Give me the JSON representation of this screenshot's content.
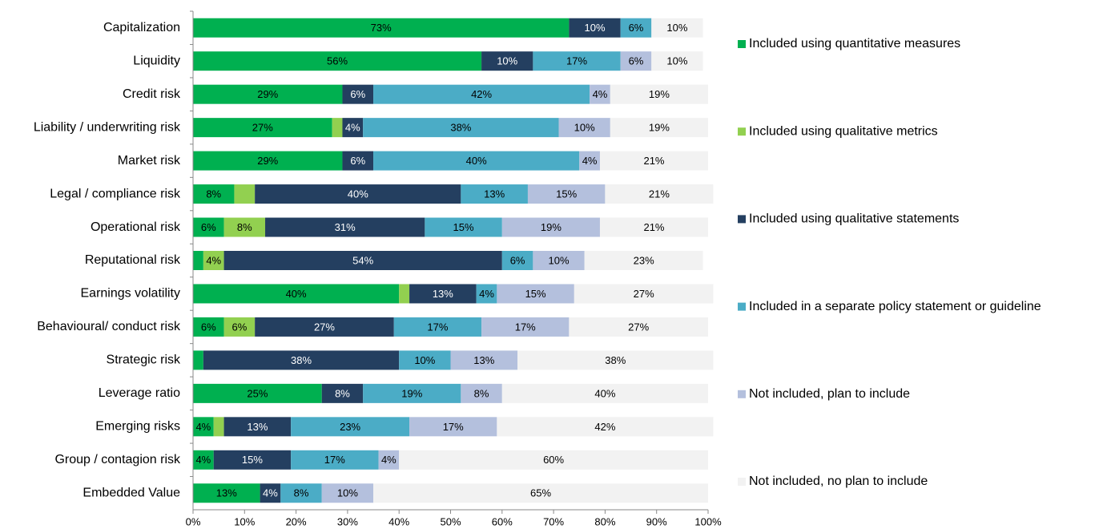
{
  "chart_data": {
    "type": "stacked_barh",
    "categories": [
      "Capitalization",
      "Liquidity",
      "Credit risk",
      "Liability / underwriting risk",
      "Market risk",
      "Legal / compliance risk",
      "Operational risk",
      "Reputational risk",
      "Earnings volatility",
      "Behavioural/ conduct risk",
      "Strategic risk",
      "Leverage ratio",
      "Emerging risks",
      "Group / contagion risk",
      "Embedded Value"
    ],
    "series": [
      {
        "name": "Included using quantitative measures",
        "color": "#00b050",
        "label_color": "#000000",
        "values": [
          73,
          56,
          29,
          27,
          29,
          8,
          6,
          2,
          40,
          6,
          2,
          25,
          4,
          4,
          13
        ],
        "value_labels": [
          "73%",
          "56%",
          "29%",
          "27%",
          "29%",
          "8%",
          "6%",
          null,
          "40%",
          "6%",
          null,
          "25%",
          "4%",
          "4%",
          "13%"
        ]
      },
      {
        "name": "Included using qualitative metrics",
        "color": "#92d050",
        "label_color": "#000000",
        "values": [
          0,
          0,
          0,
          2,
          0,
          4,
          8,
          4,
          2,
          6,
          0,
          0,
          2,
          0,
          0
        ],
        "value_labels": [
          null,
          null,
          null,
          null,
          null,
          null,
          "8%",
          "4%",
          null,
          "6%",
          null,
          null,
          null,
          null,
          null
        ]
      },
      {
        "name": "Included using qualitative statements",
        "color": "#243f60",
        "label_color": "#ffffff",
        "values": [
          10,
          10,
          6,
          4,
          6,
          40,
          31,
          54,
          13,
          27,
          38,
          8,
          13,
          15,
          4
        ],
        "value_labels": [
          "10%",
          "10%",
          "6%",
          "4%",
          "6%",
          "40%",
          "31%",
          "54%",
          "13%",
          "27%",
          "38%",
          "8%",
          "13%",
          "15%",
          "4%"
        ]
      },
      {
        "name": "Included in a separate policy statement or guideline",
        "color": "#4bacc6",
        "label_color": "#000000",
        "values": [
          6,
          17,
          42,
          38,
          40,
          13,
          15,
          6,
          4,
          17,
          10,
          19,
          23,
          17,
          8
        ],
        "value_labels": [
          "6%",
          "17%",
          "42%",
          "38%",
          "40%",
          "13%",
          "15%",
          "6%",
          "4%",
          "17%",
          "10%",
          "19%",
          "23%",
          "17%",
          "8%"
        ]
      },
      {
        "name": "Not included, plan to include",
        "color": "#b4c0dd",
        "label_color": "#000000",
        "values": [
          0,
          6,
          4,
          10,
          4,
          15,
          19,
          10,
          15,
          17,
          13,
          8,
          17,
          4,
          10
        ],
        "value_labels": [
          null,
          "6%",
          "4%",
          "10%",
          "4%",
          "15%",
          "19%",
          "10%",
          "15%",
          "17%",
          "13%",
          "8%",
          "17%",
          "4%",
          "10%"
        ]
      },
      {
        "name": "Not included, no plan to include",
        "color": "#f2f2f2",
        "label_color": "#000000",
        "values": [
          10,
          10,
          19,
          19,
          21,
          21,
          21,
          23,
          27,
          27,
          38,
          40,
          42,
          60,
          65
        ],
        "value_labels": [
          "10%",
          "10%",
          "19%",
          "19%",
          "21%",
          "21%",
          "21%",
          "23%",
          "27%",
          "27%",
          "38%",
          "40%",
          "42%",
          "60%",
          "65%"
        ]
      }
    ],
    "xlim": [
      0,
      100
    ],
    "xticks": [
      {
        "value": 0,
        "label": "0%"
      },
      {
        "value": 10,
        "label": "10%"
      },
      {
        "value": 20,
        "label": "20%"
      },
      {
        "value": 30,
        "label": "30%"
      },
      {
        "value": 40,
        "label": "40%"
      },
      {
        "value": 50,
        "label": "50%"
      },
      {
        "value": 60,
        "label": "60%"
      },
      {
        "value": 70,
        "label": "70%"
      },
      {
        "value": 80,
        "label": "80%"
      },
      {
        "value": 90,
        "label": "90%"
      },
      {
        "value": 100,
        "label": "100%"
      }
    ],
    "legend": "right"
  }
}
